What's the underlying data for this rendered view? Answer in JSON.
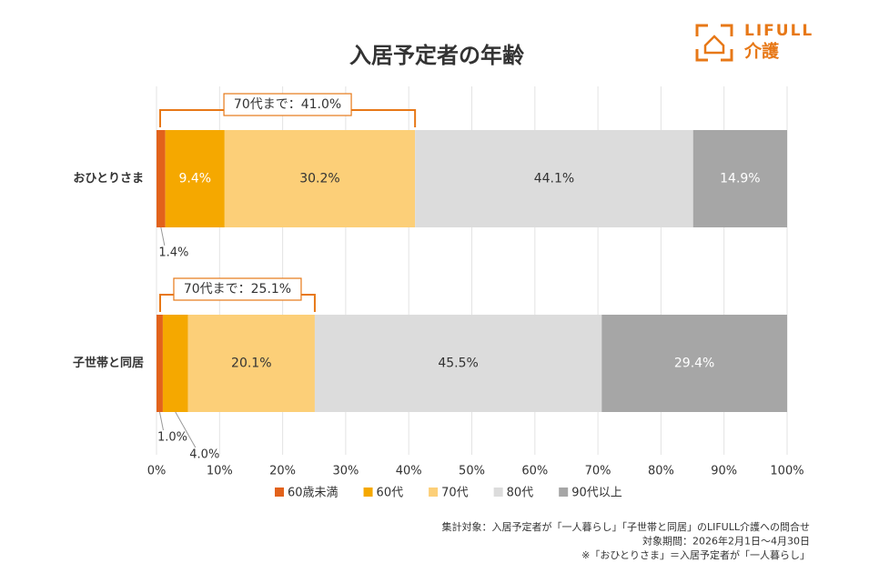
{
  "chart_data": {
    "type": "stacked-barh",
    "title": "入居予定者の年齢",
    "logo": {
      "brand": "LIFULL",
      "service": "介護"
    },
    "categories": [
      "おひとりさま",
      "子世帯と同居"
    ],
    "series": [
      {
        "name": "60歳未満",
        "color": "#e2621b",
        "values": [
          1.4,
          1.0
        ],
        "value_labels": [
          "1.4%",
          "1.0%"
        ]
      },
      {
        "name": "60代",
        "color": "#f5a800",
        "values": [
          9.4,
          4.0
        ],
        "value_labels": [
          "9.4%",
          "4.0%"
        ]
      },
      {
        "name": "70代",
        "color": "#fccf78",
        "values": [
          30.2,
          20.1
        ],
        "value_labels": [
          "30.2%",
          "20.1%"
        ]
      },
      {
        "name": "80代",
        "color": "#dcdcdc",
        "values": [
          44.1,
          45.5
        ],
        "value_labels": [
          "44.1%",
          "45.5%"
        ]
      },
      {
        "name": "90代以上",
        "color": "#a6a6a6",
        "values": [
          14.9,
          29.4
        ],
        "value_labels": [
          "14.9%",
          "29.4%"
        ]
      }
    ],
    "annotations": [
      {
        "label": "70代まで：41.0%",
        "value": 41.0
      },
      {
        "label": "70代まで：25.1%",
        "value": 25.1
      }
    ],
    "xlim": [
      0,
      100
    ],
    "xticks": [
      {
        "value": 0,
        "label": "0%"
      },
      {
        "value": 10,
        "label": "10%"
      },
      {
        "value": 20,
        "label": "20%"
      },
      {
        "value": 30,
        "label": "30%"
      },
      {
        "value": 40,
        "label": "40%"
      },
      {
        "value": 50,
        "label": "50%"
      },
      {
        "value": 60,
        "label": "60%"
      },
      {
        "value": 70,
        "label": "70%"
      },
      {
        "value": 80,
        "label": "80%"
      },
      {
        "value": 90,
        "label": "90%"
      },
      {
        "value": 100,
        "label": "100%"
      }
    ],
    "grid": true,
    "legend": "bottom",
    "notes": [
      "集計対象：入居予定者が「一人暮らし」「子世帯と同居」のLIFULL介護への問合せ",
      "対象期間：2026年2月1日～4月30日",
      "※「おひとりさま」＝入居予定者が「一人暮らし」"
    ]
  }
}
